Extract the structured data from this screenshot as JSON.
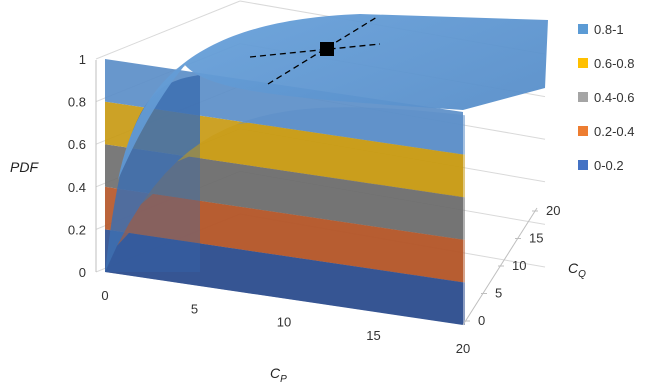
{
  "chart_data": {
    "type": "surface",
    "title": "",
    "zlabel": "PDF",
    "xlabel_main": "C",
    "xlabel_sub": "P",
    "ylabel_main": "C",
    "ylabel_sub": "Q",
    "x_ticks": [
      "0",
      "5",
      "10",
      "15",
      "20"
    ],
    "y_ticks": [
      "0",
      "5",
      "10",
      "15",
      "20"
    ],
    "z_ticks": [
      "0",
      "0.2",
      "0.4",
      "0.6",
      "0.8",
      "1"
    ],
    "xlim": [
      0,
      20
    ],
    "ylim": [
      0,
      20
    ],
    "zlim": [
      0,
      1
    ],
    "legend_position": "right",
    "legend": [
      {
        "label": "0.8-1",
        "color": "#5b9bd5"
      },
      {
        "label": "0.6-0.8",
        "color": "#ffc000"
      },
      {
        "label": "0.4-0.6",
        "color": "#a5a5a5"
      },
      {
        "label": "0.2-0.4",
        "color": "#ed7d31"
      },
      {
        "label": "0-0.2",
        "color": "#4472c4"
      }
    ],
    "bands": [
      {
        "range": [
          0,
          0.2
        ],
        "color": "#2f4f8f"
      },
      {
        "range": [
          0.2,
          0.4
        ],
        "color": "#b5572a"
      },
      {
        "range": [
          0.4,
          0.6
        ],
        "color": "#6f6f6f"
      },
      {
        "range": [
          0.6,
          0.8
        ],
        "color": "#c89a14"
      },
      {
        "range": [
          0.8,
          1.0
        ],
        "color": "#5b8ec8"
      }
    ],
    "annotation_marker": {
      "shape": "square",
      "color": "#000000",
      "x": 17,
      "y": 17,
      "z": 1
    }
  }
}
